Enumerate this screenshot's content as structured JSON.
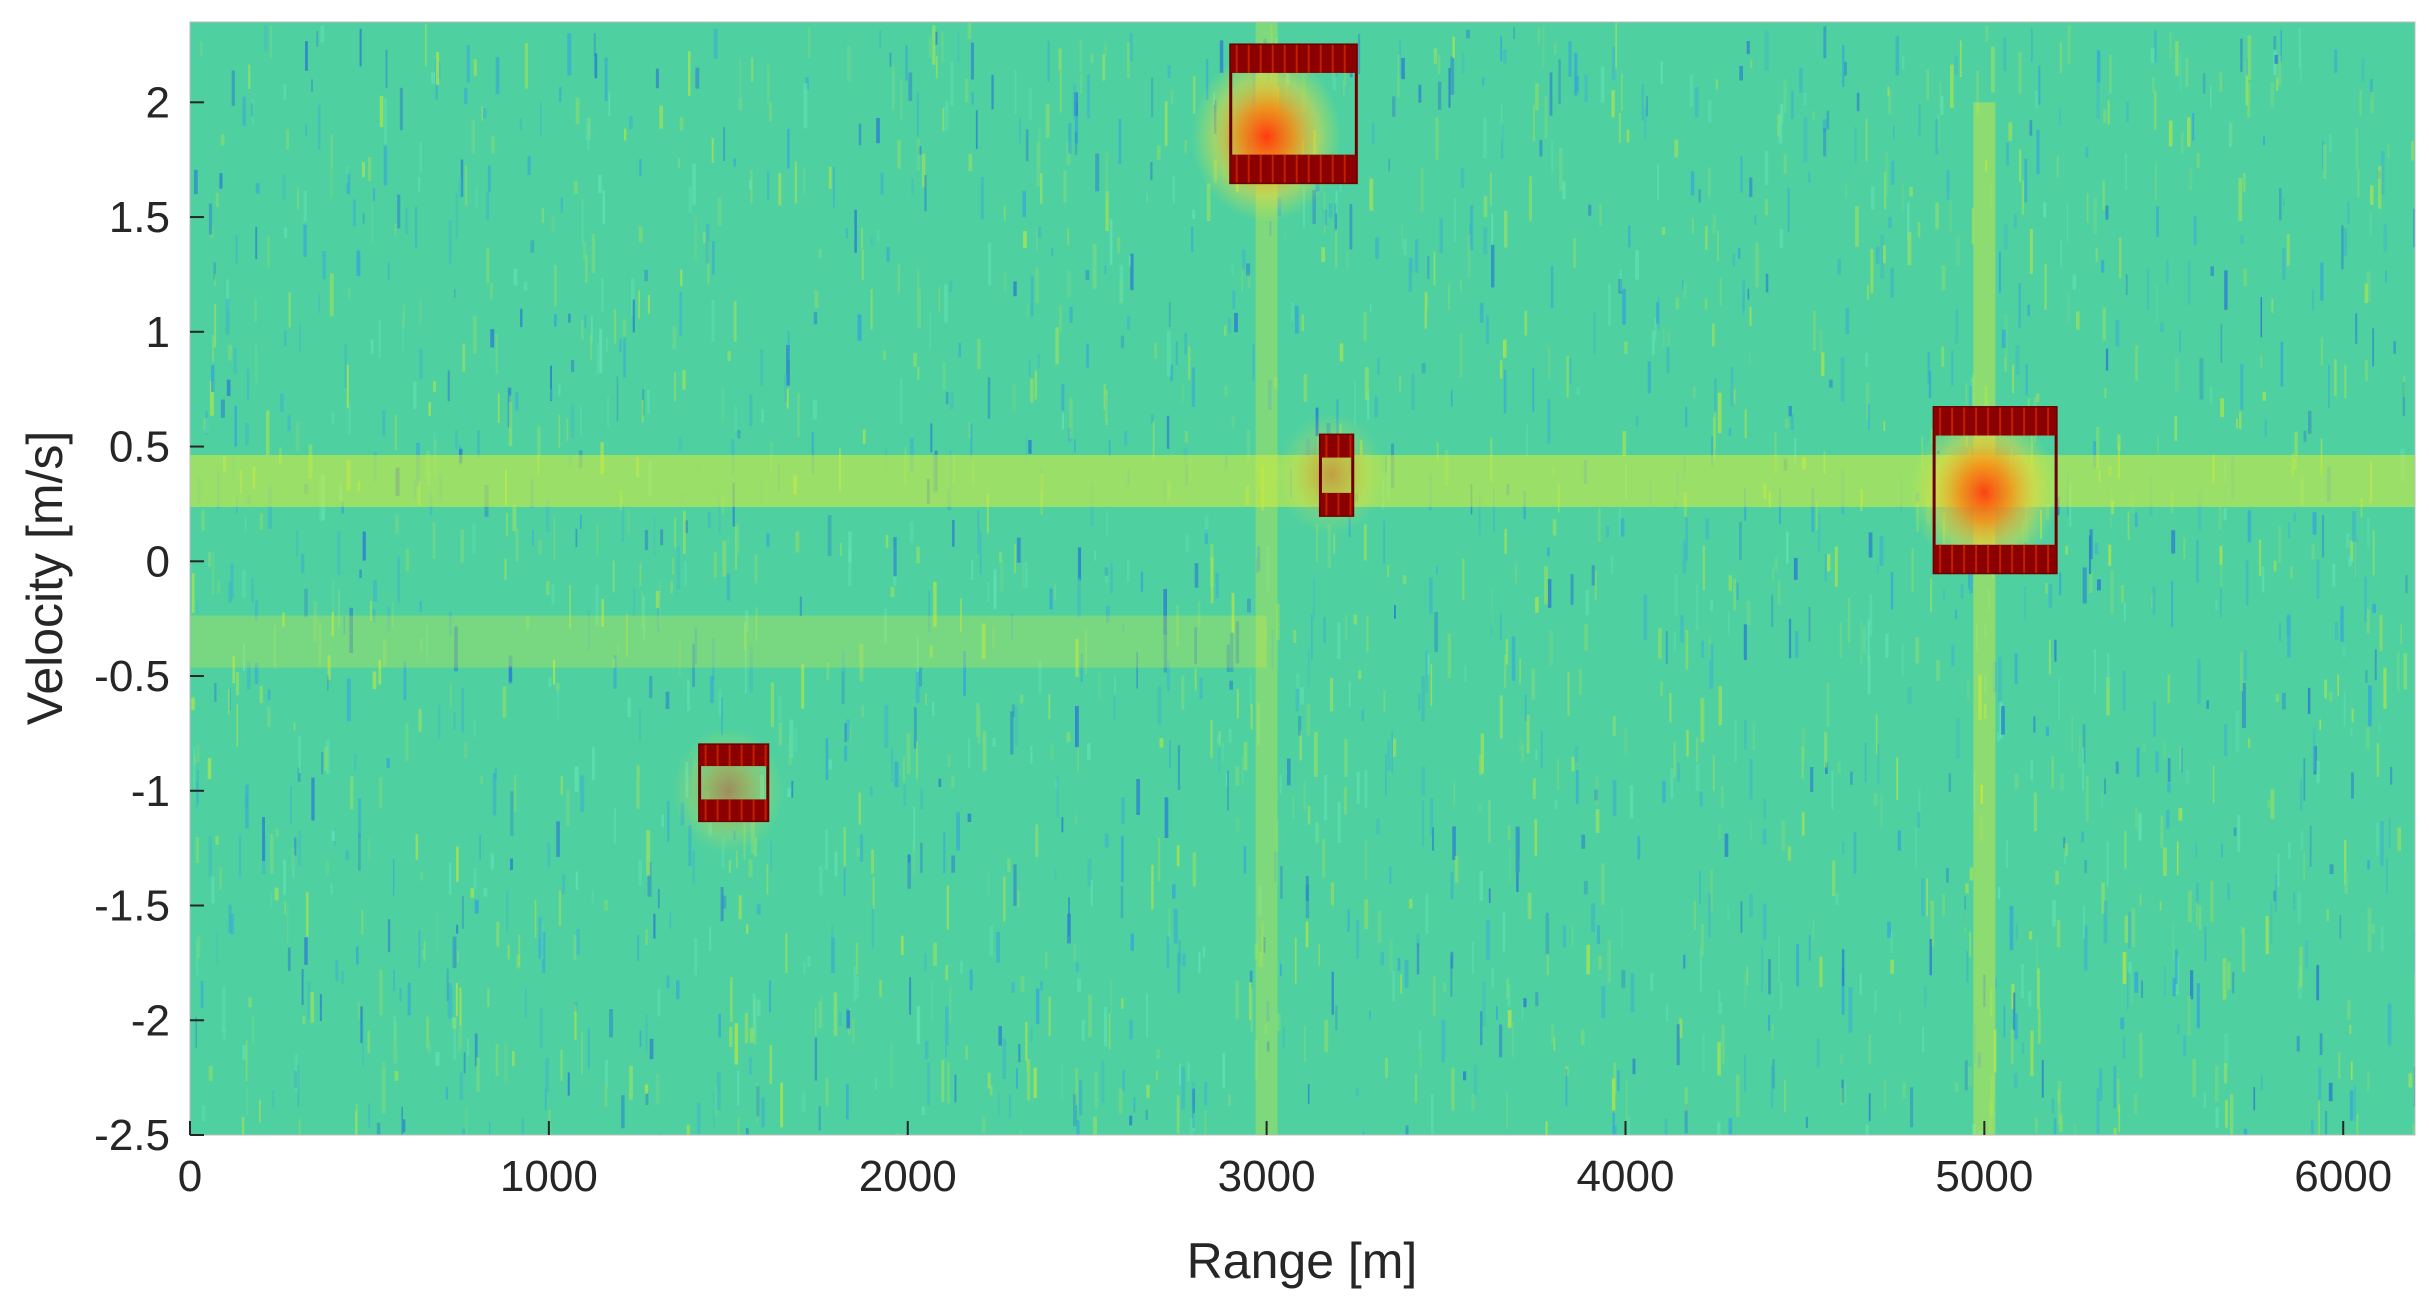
{
  "chart_data": {
    "type": "heatmap",
    "title": "",
    "xlabel": "Range [m]",
    "ylabel": "Velocity [m/s]",
    "xlim": [
      0,
      6200
    ],
    "ylim": [
      -2.5,
      2.35
    ],
    "xticks": [
      0,
      1000,
      2000,
      3000,
      4000,
      5000,
      6000
    ],
    "xtick_labels": [
      "0",
      "1000",
      "2000",
      "3000",
      "4000",
      "5000",
      "6000"
    ],
    "yticks": [
      2,
      1.5,
      1,
      0.5,
      0,
      -0.5,
      -1,
      -1.5,
      -2,
      -2.5
    ],
    "ytick_labels": [
      "2",
      "1.5",
      "1",
      "0.5",
      "0",
      "-0.5",
      "-1",
      "-1.5",
      "-2",
      "-2.5"
    ],
    "colormap": "jet",
    "colors": {
      "background_noise": "#4fd0a0",
      "noise_light": "#8fe06a",
      "noise_dark": "#2a7fd0",
      "ridge": "#d8ec3a",
      "target_core": "#ff4a10",
      "target_glow": "#ffb020",
      "cfar_band": "#8b0000"
    },
    "ridges": [
      {
        "orientation": "horizontal",
        "velocity": 0.35,
        "range_from": 0,
        "range_to": 6200,
        "strength": 0.55
      },
      {
        "orientation": "horizontal",
        "velocity": -0.35,
        "range_from": 0,
        "range_to": 3000,
        "strength": 0.3
      },
      {
        "orientation": "vertical",
        "range": 3000,
        "velocity_from": -2.5,
        "velocity_to": 2.35,
        "strength": 0.35
      },
      {
        "orientation": "vertical",
        "range": 5000,
        "velocity_from": -2.5,
        "velocity_to": 2.0,
        "strength": 0.45
      }
    ],
    "targets": [
      {
        "range": 3000,
        "velocity": 1.85,
        "intensity": 1.0
      },
      {
        "range": 5000,
        "velocity": 0.3,
        "intensity": 0.95
      },
      {
        "range": 1500,
        "velocity": -1.0,
        "intensity": 0.45
      },
      {
        "range": 3180,
        "velocity": 0.38,
        "intensity": 0.4
      }
    ],
    "detection_boxes": [
      {
        "range_min": 2900,
        "range_max": 3250,
        "velocity_min": 1.65,
        "velocity_max": 2.25
      },
      {
        "range_min": 4860,
        "range_max": 5200,
        "velocity_min": -0.05,
        "velocity_max": 0.67
      },
      {
        "range_min": 1420,
        "range_max": 1610,
        "velocity_min": -1.13,
        "velocity_max": -0.8
      },
      {
        "range_min": 3150,
        "range_max": 3240,
        "velocity_min": 0.2,
        "velocity_max": 0.55
      }
    ]
  }
}
